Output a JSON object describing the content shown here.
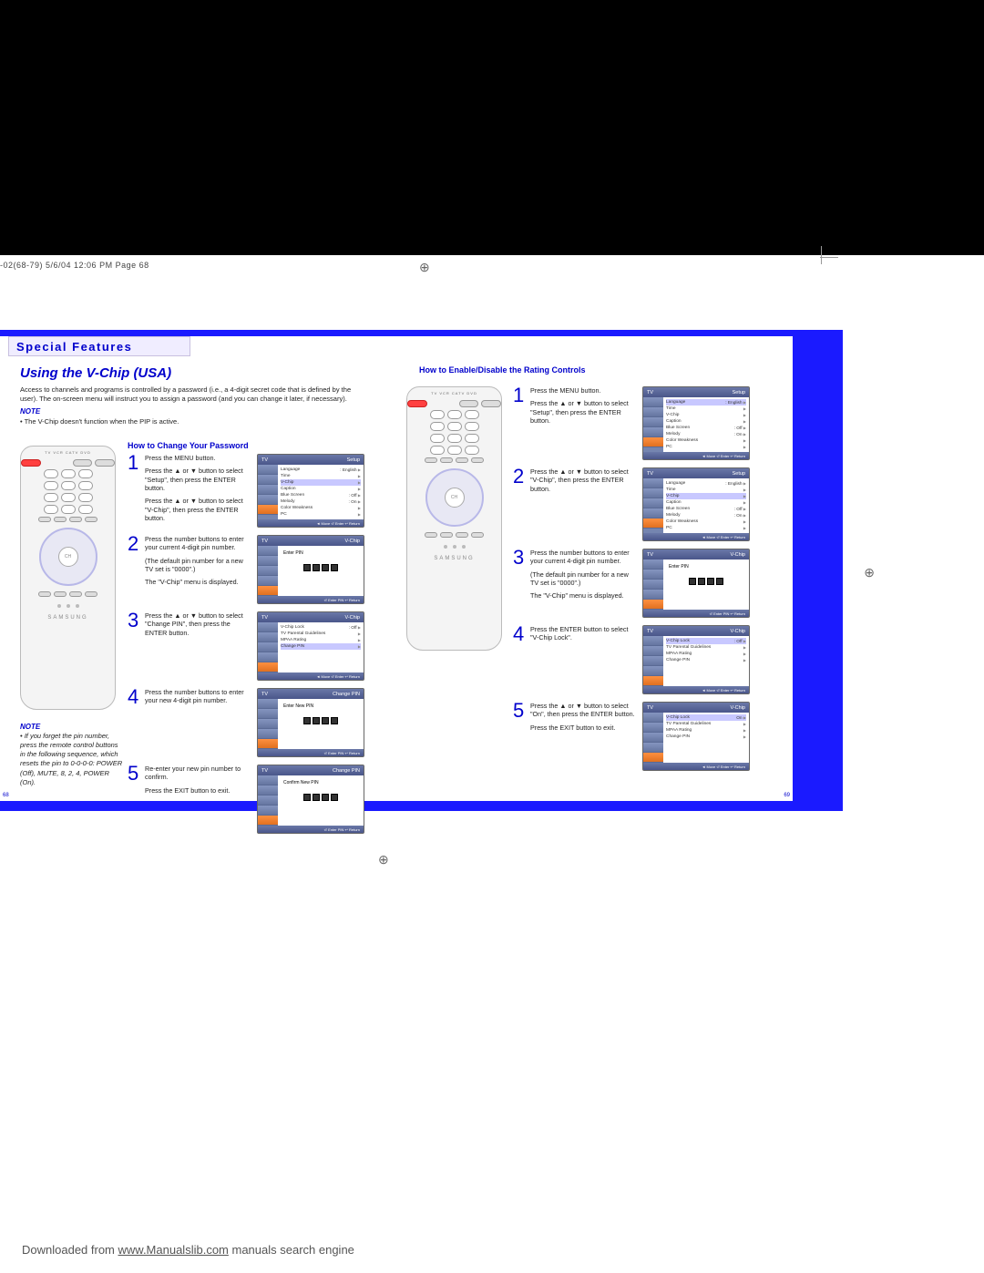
{
  "printMark": "-02(68-79)  5/6/04  12:06 PM  Page 68",
  "featureTab": "Special Features",
  "pageTitle": "Using the V-Chip (USA)",
  "introText": "Access to channels and programs is controlled by a password (i.e., a 4-digit secret code that is defined by the user). The on-screen menu will instruct you to assign a password (and you can change it later, if necessary).",
  "topNoteLabel": "NOTE",
  "topNoteBody": "• The V-Chip doesn't function when the PIP is active.",
  "sideNoteLabel": "NOTE",
  "sideNoteBody": "• If you forget the pin number, press the remote control buttons in the following sequence, which resets the pin to 0-0-0-0: POWER (Off), MUTE, 8, 2, 4, POWER (On).",
  "section1Header": "How to Change Your Password",
  "section2Header": "How to Enable/Disable the Rating Controls",
  "remoteBrand": "SAMSUNG",
  "remoteTopLabels": "TV  VCR  CATV  DVD",
  "dpadLabel": "CH",
  "leftSteps": [
    {
      "num": "1",
      "text": "Press the MENU button.\nPress the ▲ or ▼ button to select \"Setup\", then press the ENTER button.\nPress the ▲ or ▼ button to select \"V-Chip\", then press the ENTER button.",
      "osd": {
        "title": "Setup",
        "tv": "TV",
        "lines": [
          [
            "Language",
            ": English"
          ],
          [
            "Time",
            ""
          ],
          [
            "V-Chip",
            ""
          ],
          [
            "Caption",
            ""
          ],
          [
            "Blue Screen",
            ": Off"
          ],
          [
            "Melody",
            ": On"
          ],
          [
            "Color Weakness",
            ""
          ],
          [
            "PC",
            ""
          ]
        ],
        "sel": 2
      }
    },
    {
      "num": "2",
      "text": "Press the number buttons to enter your current 4-digit pin number.\n(The default pin number for a new TV set is \"0000\".)\nThe \"V-Chip\" menu is displayed.",
      "osd": {
        "title": "V-Chip",
        "tv": "TV",
        "pin": "Enter PIN",
        "squares": 4
      }
    },
    {
      "num": "3",
      "text": "Press the ▲ or ▼ button to select \"Change PIN\", then press the ENTER button.",
      "osd": {
        "title": "V-Chip",
        "tv": "TV",
        "lines": [
          [
            "V-Chip Lock",
            ": Off"
          ],
          [
            "TV Parental Guidelines",
            ""
          ],
          [
            "MPAA Rating",
            ""
          ],
          [
            "Change PIN",
            ""
          ]
        ],
        "sel": 3
      }
    },
    {
      "num": "4",
      "text": "Press the number buttons to enter your new 4-digit pin number.",
      "osd": {
        "title": "Change PIN",
        "tv": "TV",
        "pin": "Enter New PIN",
        "squares": 4
      }
    },
    {
      "num": "5",
      "text": "Re-enter your new pin number to confirm.",
      "text2": "Press the EXIT button to exit.",
      "osd": {
        "title": "Change PIN",
        "tv": "TV",
        "pin": "Confirm New PIN",
        "squares": 4
      }
    }
  ],
  "rightSteps": [
    {
      "num": "1",
      "text": "Press the MENU button.\nPress the ▲ or ▼ button to select \"Setup\", then press the ENTER button.",
      "osd": {
        "title": "Setup",
        "tv": "TV",
        "lines": [
          [
            "Language",
            ": English"
          ],
          [
            "Time",
            ""
          ],
          [
            "V-Chip",
            ""
          ],
          [
            "Caption",
            ""
          ],
          [
            "Blue Screen",
            ": Off"
          ],
          [
            "Melody",
            ": On"
          ],
          [
            "Color Weakness",
            ""
          ],
          [
            "PC",
            ""
          ]
        ],
        "sel": 0
      }
    },
    {
      "num": "2",
      "text": "Press the ▲ or ▼ button to select \"V-Chip\", then press the ENTER button.",
      "osd": {
        "title": "Setup",
        "tv": "TV",
        "lines": [
          [
            "Language",
            ": English"
          ],
          [
            "Time",
            ""
          ],
          [
            "V-Chip",
            ""
          ],
          [
            "Caption",
            ""
          ],
          [
            "Blue Screen",
            ": Off"
          ],
          [
            "Melody",
            ": On"
          ],
          [
            "Color Weakness",
            ""
          ],
          [
            "PC",
            ""
          ]
        ],
        "sel": 2
      }
    },
    {
      "num": "3",
      "text": "Press the number buttons to enter your current 4-digit pin number.\n(The default pin number for a new TV set is \"0000\".)\nThe \"V-Chip\" menu is displayed.",
      "osd": {
        "title": "V-Chip",
        "tv": "TV",
        "pin": "Enter PIN",
        "squares": 4
      }
    },
    {
      "num": "4",
      "text": "Press the ENTER button to select \"V-Chip Lock\".",
      "osd": {
        "title": "V-Chip",
        "tv": "TV",
        "lines": [
          [
            "V-Chip Lock",
            ": Off"
          ],
          [
            "TV Parental Guidelines",
            ""
          ],
          [
            "MPAA Rating",
            ""
          ],
          [
            "Change PIN",
            ""
          ]
        ],
        "sel": 0
      }
    },
    {
      "num": "5",
      "text": "Press the ▲ or ▼ button to select \"On\", then press the ENTER button.",
      "text2": "Press the EXIT button to exit.",
      "osd": {
        "title": "V-Chip",
        "tv": "TV",
        "lines": [
          [
            "V-Chip Lock",
            "On"
          ],
          [
            "TV Parental Guidelines",
            ""
          ],
          [
            "MPAA Rating",
            ""
          ],
          [
            "Change PIN",
            ""
          ]
        ],
        "sel": 0,
        "highlight": true
      }
    }
  ],
  "osdFooter": "◄ Move    ⏎ Enter    ↩ Return",
  "osdFooterExit": "⏎ Enter PIN    ↩ Return",
  "pageLeft": "68",
  "pageRight": "69",
  "footer": {
    "prefix": "Downloaded from ",
    "link": "www.Manualslib.com",
    "suffix": "  manuals search engine"
  }
}
